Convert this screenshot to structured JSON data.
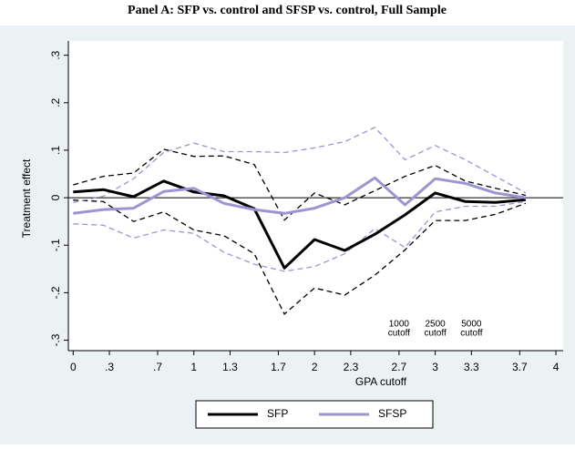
{
  "chart_data": {
    "type": "line",
    "title": "Panel A: SFP vs. control and SFSP vs. control, Full Sample",
    "x_label": "GPA cutoff",
    "y_label": "Treatment effect",
    "x": [
      0,
      0.25,
      0.5,
      0.75,
      1,
      1.25,
      1.5,
      1.75,
      2,
      2.25,
      2.5,
      2.75,
      3,
      3.25,
      3.5,
      3.75
    ],
    "series": [
      {
        "name": "SFP",
        "color": "#000000",
        "values": [
          0.012,
          0.017,
          0.002,
          0.035,
          0.012,
          0.004,
          -0.023,
          -0.148,
          -0.088,
          -0.111,
          -0.077,
          -0.036,
          0.01,
          -0.008,
          -0.01,
          -0.004
        ],
        "ci_upper": [
          0.027,
          0.045,
          0.052,
          0.102,
          0.087,
          0.088,
          0.07,
          -0.047,
          0.01,
          -0.015,
          0.015,
          0.045,
          0.068,
          0.035,
          0.02,
          0.005
        ],
        "ci_lower": [
          -0.005,
          -0.008,
          -0.05,
          -0.03,
          -0.068,
          -0.08,
          -0.118,
          -0.245,
          -0.19,
          -0.205,
          -0.163,
          -0.11,
          -0.048,
          -0.048,
          -0.035,
          -0.012
        ]
      },
      {
        "name": "SFSP",
        "color": "#9b95d3",
        "values": [
          -0.033,
          -0.025,
          -0.022,
          0.013,
          0.02,
          -0.012,
          -0.025,
          -0.033,
          -0.022,
          0,
          0.042,
          -0.015,
          0.04,
          0.03,
          0.01,
          0
        ],
        "ci_upper": [
          -0.01,
          0.003,
          0.04,
          0.095,
          0.115,
          0.097,
          0.097,
          0.095,
          0.105,
          0.118,
          0.148,
          0.08,
          0.11,
          0.08,
          0.045,
          0.01
        ],
        "ci_lower": [
          -0.055,
          -0.058,
          -0.085,
          -0.068,
          -0.075,
          -0.115,
          -0.14,
          -0.155,
          -0.145,
          -0.118,
          -0.065,
          -0.105,
          -0.03,
          -0.018,
          -0.018,
          -0.008
        ]
      }
    ],
    "xlim": [
      -0.04,
      4.06
    ],
    "xticks": [
      0,
      {
        "value": 0.3,
        "label": ".3"
      },
      {
        "value": 0.7,
        "label": ".7"
      },
      1,
      {
        "value": 1.3,
        "label": "1.3"
      },
      {
        "value": 1.7,
        "label": "1.7"
      },
      2,
      {
        "value": 2.3,
        "label": "2.3"
      },
      {
        "value": 2.7,
        "label": "2.7"
      },
      3,
      {
        "value": 3.3,
        "label": "3.3"
      },
      {
        "value": 3.7,
        "label": "3.7"
      },
      4
    ],
    "ylim": [
      -0.322,
      0.33
    ],
    "yticks": [
      {
        "value": -0.3,
        "label": "-.3"
      },
      {
        "value": -0.2,
        "label": "-.2"
      },
      {
        "value": -0.1,
        "label": "-.1"
      },
      0,
      {
        "value": 0.1,
        "label": ".1"
      },
      {
        "value": 0.2,
        "label": ".2"
      },
      {
        "value": 0.3,
        "label": ".3"
      }
    ],
    "annotations": [
      [
        "1000",
        "cutoff"
      ],
      [
        "2500",
        "cutoff"
      ],
      [
        "5000",
        "cutoff"
      ]
    ],
    "legend_position": "bottom"
  }
}
